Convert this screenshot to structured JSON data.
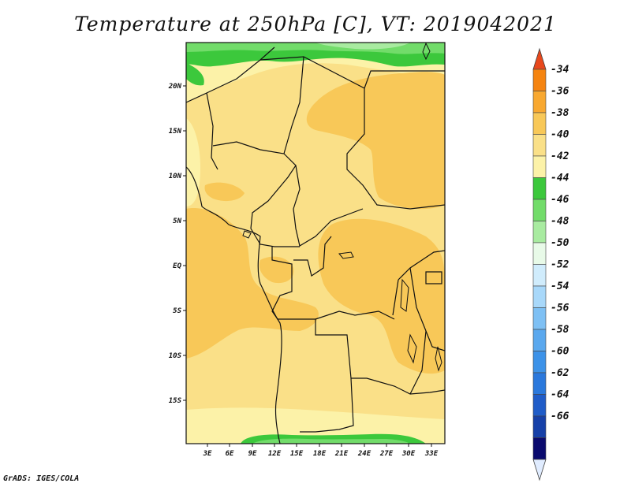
{
  "title": "Temperature at 250hPa [C], VT: 2019042021",
  "footer": "GrADS: IGES/COLA",
  "map": {
    "lat_labels": [
      "20N",
      "15N",
      "10N",
      "5N",
      "EQ",
      "5S",
      "10S",
      "15S"
    ],
    "lon_labels": [
      "3E",
      "6E",
      "9E",
      "12E",
      "15E",
      "18E",
      "21E",
      "24E",
      "27E",
      "30E",
      "33E"
    ]
  },
  "colorbar": {
    "labels": [
      "-34",
      "-36",
      "-38",
      "-40",
      "-42",
      "-44",
      "-46",
      "-48",
      "-50",
      "-52",
      "-54",
      "-56",
      "-58",
      "-60",
      "-62",
      "-64",
      "-66"
    ],
    "colors": [
      "#e0ecff",
      "#0a0a6e",
      "#1640a8",
      "#1f5cc8",
      "#2a78dc",
      "#3c92e8",
      "#5aa8ee",
      "#7ec0f4",
      "#a8d8fa",
      "#d0ecfc",
      "#e8fae8",
      "#a8eba0",
      "#72dc6a",
      "#3cc83c",
      "#fcf2a8",
      "#fae088",
      "#f8c858",
      "#f8a830",
      "#f58410",
      "#e8481c"
    ]
  },
  "legend_colors": {
    "c42": "#fcf2a8",
    "c40": "#fae088",
    "c38": "#f8c858",
    "c44": "#3cc83c",
    "c46": "#72dc6a",
    "c48": "#a8eba0",
    "c50": "#e8fae8"
  }
}
